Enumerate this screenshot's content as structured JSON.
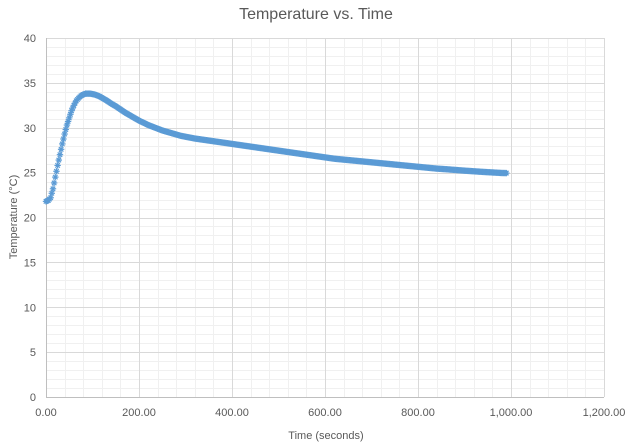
{
  "chart_data": {
    "type": "scatter",
    "title": "Temperature vs. Time",
    "xlabel": "Time (seconds)",
    "ylabel": "Temperature (°C)",
    "xlim": [
      0,
      1200
    ],
    "ylim": [
      0,
      40
    ],
    "x_ticks": [
      0,
      200,
      400,
      600,
      800,
      1000,
      1200
    ],
    "x_tick_labels": [
      "0.00",
      "200.00",
      "400.00",
      "600.00",
      "800.00",
      "1,000.00",
      "1,200.00"
    ],
    "y_ticks": [
      0,
      5,
      10,
      15,
      20,
      25,
      30,
      35,
      40
    ],
    "y_tick_labels": [
      "0",
      "5",
      "10",
      "15",
      "20",
      "25",
      "30",
      "35",
      "40"
    ],
    "grid": "major and minor",
    "legend": "none",
    "marker": "star",
    "series_color": "#5b9bd5",
    "x": [
      0,
      5,
      10,
      15,
      20,
      25,
      30,
      35,
      40,
      45,
      50,
      55,
      60,
      65,
      70,
      75,
      80,
      85,
      90,
      95,
      100,
      105,
      110,
      115,
      120,
      125,
      130,
      140,
      150,
      160,
      170,
      180,
      190,
      200,
      210,
      220,
      230,
      240,
      250,
      260,
      270,
      280,
      290,
      300,
      320,
      340,
      360,
      380,
      400,
      420,
      440,
      460,
      480,
      500,
      520,
      540,
      560,
      580,
      600,
      620,
      640,
      660,
      680,
      700,
      720,
      740,
      760,
      780,
      800,
      820,
      840,
      860,
      880,
      900,
      920,
      940,
      960,
      980,
      990
    ],
    "y": [
      21.8,
      21.9,
      22.2,
      23.2,
      24.5,
      25.8,
      27.0,
      28.2,
      29.3,
      30.3,
      31.1,
      31.9,
      32.5,
      33.0,
      33.3,
      33.55,
      33.7,
      33.8,
      33.8,
      33.8,
      33.75,
      33.7,
      33.6,
      33.5,
      33.35,
      33.2,
      33.05,
      32.7,
      32.4,
      32.05,
      31.7,
      31.4,
      31.1,
      30.8,
      30.55,
      30.3,
      30.1,
      29.9,
      29.7,
      29.55,
      29.4,
      29.25,
      29.1,
      29.0,
      28.8,
      28.65,
      28.5,
      28.35,
      28.2,
      28.05,
      27.9,
      27.75,
      27.6,
      27.45,
      27.3,
      27.15,
      27.0,
      26.85,
      26.7,
      26.55,
      26.45,
      26.35,
      26.25,
      26.15,
      26.05,
      25.95,
      25.85,
      25.75,
      25.65,
      25.55,
      25.45,
      25.38,
      25.3,
      25.22,
      25.15,
      25.08,
      25.02,
      24.96,
      24.95
    ]
  }
}
